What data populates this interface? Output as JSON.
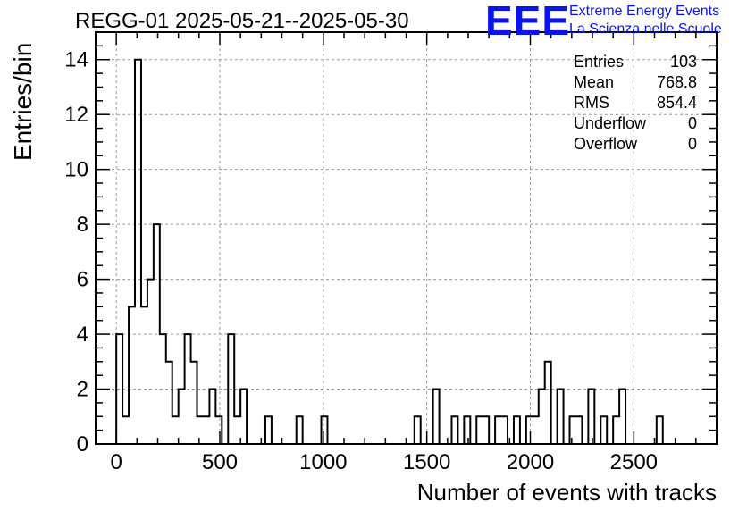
{
  "header": {
    "title": "REGG-01 2025-05-21--2025-05-30",
    "logo_text": "EEE",
    "logo_line1": "Extreme Energy Events",
    "logo_line2": "La Scienza nelle Scuole",
    "logo_color": "#0a14f0"
  },
  "stats_box": {
    "rows": [
      {
        "label": "Entries",
        "value": "103"
      },
      {
        "label": "Mean",
        "value": "768.8"
      },
      {
        "label": "RMS",
        "value": "854.4"
      },
      {
        "label": "Underflow",
        "value": "0"
      },
      {
        "label": "Overflow",
        "value": "0"
      }
    ]
  },
  "chart_data": {
    "type": "bar",
    "histogram_style": "step",
    "title": "REGG-01 2025-05-21--2025-05-30",
    "xlabel": "Number of events with tracks",
    "ylabel": "Entries/bin",
    "xlim": [
      -100,
      2900
    ],
    "ylim": [
      0,
      15
    ],
    "bin_width": 30,
    "bin_start": 0,
    "x_ticks": [
      0,
      500,
      1000,
      1500,
      2000,
      2500
    ],
    "y_ticks": [
      0,
      2,
      4,
      6,
      8,
      10,
      12,
      14
    ],
    "grid": true,
    "line_color": "#000000",
    "values": [
      4,
      1,
      5,
      14,
      5,
      6,
      8,
      4,
      3,
      1,
      2,
      4,
      3,
      1,
      1,
      2,
      1,
      0,
      4,
      1,
      2,
      0,
      0,
      0,
      1,
      0,
      0,
      0,
      0,
      1,
      0,
      0,
      0,
      1,
      0,
      0,
      0,
      0,
      0,
      0,
      0,
      0,
      0,
      0,
      0,
      0,
      0,
      0,
      1,
      0,
      0,
      2,
      0,
      0,
      1,
      0,
      1,
      0,
      1,
      1,
      0,
      1,
      1,
      0,
      1,
      0,
      1,
      1,
      2,
      3,
      0,
      2,
      0,
      1,
      1,
      0,
      2,
      0,
      1,
      0,
      1,
      2,
      0,
      0,
      0,
      0,
      0,
      1,
      0
    ]
  }
}
